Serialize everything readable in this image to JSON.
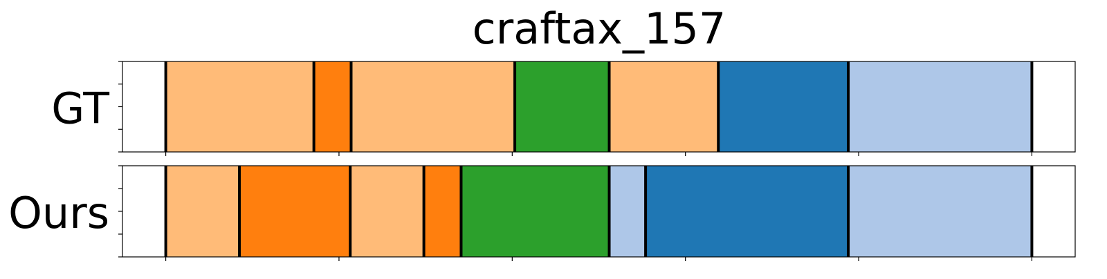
{
  "chart_data": {
    "type": "bar",
    "title": "craftax_157",
    "xlim": [
      0,
      110
    ],
    "x_ticks": [
      5,
      25,
      45,
      65,
      85,
      105
    ],
    "colors": {
      "light_orange": "#ffbb78",
      "orange": "#ff7f0e",
      "green": "#2ca02c",
      "blue": "#1f77b4",
      "light_blue": "#aec7e8",
      "boundary": "#000000",
      "frame": "#000000"
    },
    "rows": [
      {
        "label": "GT",
        "segments": [
          {
            "start": 5.0,
            "end": 22.1,
            "color": "light_orange"
          },
          {
            "start": 22.1,
            "end": 26.4,
            "color": "orange"
          },
          {
            "start": 26.4,
            "end": 45.3,
            "color": "light_orange"
          },
          {
            "start": 45.3,
            "end": 56.2,
            "color": "green"
          },
          {
            "start": 56.2,
            "end": 68.8,
            "color": "light_orange"
          },
          {
            "start": 68.8,
            "end": 83.8,
            "color": "blue"
          },
          {
            "start": 83.8,
            "end": 105.0,
            "color": "light_blue"
          }
        ]
      },
      {
        "label": "Ours",
        "segments": [
          {
            "start": 5.0,
            "end": 13.5,
            "color": "light_orange"
          },
          {
            "start": 13.5,
            "end": 26.3,
            "color": "orange"
          },
          {
            "start": 26.3,
            "end": 34.8,
            "color": "light_orange"
          },
          {
            "start": 34.8,
            "end": 39.1,
            "color": "orange"
          },
          {
            "start": 39.1,
            "end": 56.2,
            "color": "green"
          },
          {
            "start": 56.2,
            "end": 60.4,
            "color": "light_blue"
          },
          {
            "start": 60.4,
            "end": 83.8,
            "color": "blue"
          },
          {
            "start": 83.8,
            "end": 105.0,
            "color": "light_blue"
          }
        ]
      }
    ]
  }
}
